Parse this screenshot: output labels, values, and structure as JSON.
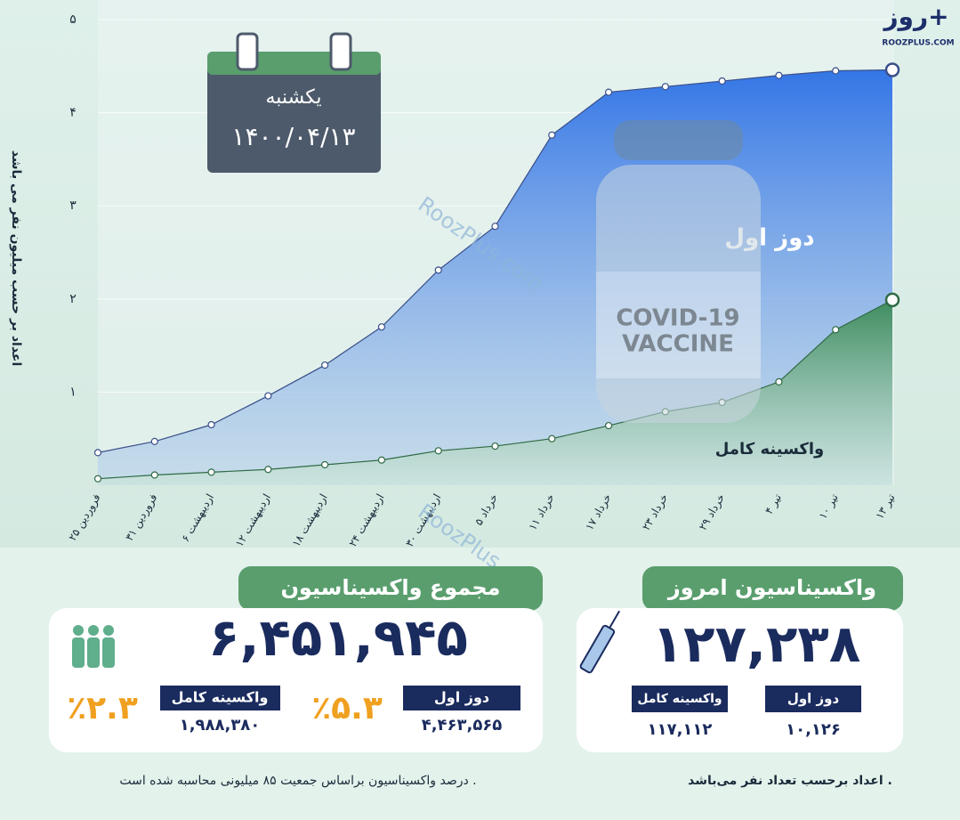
{
  "chart_data": {
    "type": "area-line",
    "y_label": "اعداد بر حسب میلیون نفر می باشد",
    "categories": [
      "۲۵ فروردین",
      "۳۱ فروردین",
      "۶ اردیبهشت",
      "۱۲ اردیبهشت",
      "۱۸ اردیبهشت",
      "۲۴ اردیبهشت",
      "۳۰ اردیبهشت",
      "۵ خرداد",
      "۱۱ خرداد",
      "۱۷ خرداد",
      "۲۳ خرداد",
      "۲۹ خرداد",
      "۴ تیر",
      "۱۰ تیر",
      "۱۳ تیر"
    ],
    "series": [
      {
        "name": "دوز اول",
        "color": "#2f6fe0",
        "values": [
          0.35,
          0.47,
          0.65,
          0.96,
          1.29,
          1.7,
          2.31,
          2.78,
          3.76,
          4.22,
          4.28,
          4.34,
          4.4,
          4.45,
          4.46
        ]
      },
      {
        "name": "واکسینه کامل",
        "color": "#3f8f5e",
        "values": [
          0.07,
          0.11,
          0.14,
          0.17,
          0.22,
          0.27,
          0.37,
          0.42,
          0.5,
          0.64,
          0.79,
          0.89,
          1.11,
          1.67,
          1.99
        ]
      }
    ],
    "ylim": [
      0,
      5
    ],
    "yticks": [
      {
        "value": 1,
        "label": "۱"
      },
      {
        "value": 2,
        "label": "۲"
      },
      {
        "value": 3,
        "label": "۳"
      },
      {
        "value": 4,
        "label": "۴"
      },
      {
        "value": 5,
        "label": "۵"
      }
    ],
    "grid": true
  },
  "calendar": {
    "weekday": "یکشنبه",
    "date": "۱۴۰۰/۰۴/۱۳"
  },
  "logo": {
    "name": "روز+",
    "site": "ROOZPLUS.COM"
  },
  "watermark": "RoozPlus.com",
  "vial": {
    "line1": "COVID-19",
    "line2": "VACCINE"
  },
  "total": {
    "title": "مجموع واکسیناسیون",
    "value": "۶,۴۵۱,۹۴۵",
    "first_label": "دوز اول",
    "first_value": "۴,۴۶۳,۵۶۵",
    "first_percent": "٪۵.۳",
    "full_label": "واکسینه کامل",
    "full_value": "۱,۹۸۸,۳۸۰",
    "full_percent": "٪۲.۳"
  },
  "today": {
    "title": "واکسیناسیون امروز",
    "value": "۱۲۷,۲۳۸",
    "first_label": "دوز اول",
    "first_value": "۱۰,۱۲۶",
    "full_label": "واکسینه کامل",
    "full_value": "۱۱۷,۱۱۲"
  },
  "notes": {
    "left": "درصد واکسیناسیون براساس جمعیت ۸۵ میلیونی محاسبه شده است .",
    "right": "اعداد برحسب تعداد نفر می‌باشد ."
  }
}
